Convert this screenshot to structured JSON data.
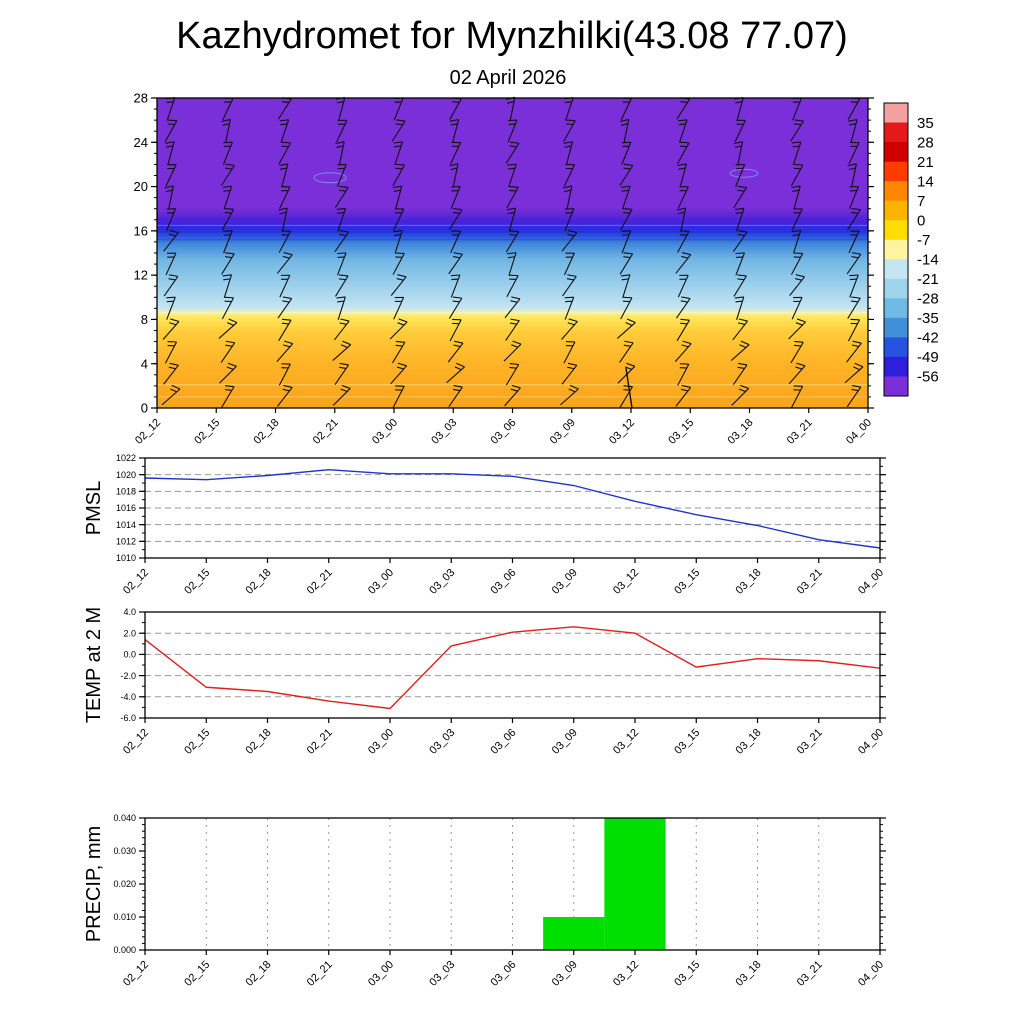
{
  "title": "Kazhydromet for Mynzhilki(43.08 77.07)",
  "subtitle": "02 April 2026",
  "time_labels": [
    "02_12",
    "02_15",
    "02_18",
    "02_21",
    "03_00",
    "03_03",
    "03_06",
    "03_09",
    "03_12",
    "03_15",
    "03_18",
    "03_21",
    "04_00"
  ],
  "chart_data": [
    {
      "type": "heatmap",
      "name": "temperature-wind-cross-section",
      "title": "02 April 2026",
      "x": [
        "02_12",
        "02_15",
        "02_18",
        "02_21",
        "03_00",
        "03_03",
        "03_06",
        "03_09",
        "03_12",
        "03_15",
        "03_18",
        "03_21",
        "04_00"
      ],
      "ylim": [
        0,
        28
      ],
      "yticks": [
        0,
        4,
        8,
        12,
        16,
        20,
        24,
        28
      ],
      "gradient_stops": [
        [
          0.0,
          "#7B2FD8"
        ],
        [
          0.355,
          "#7B2FD8"
        ],
        [
          0.395,
          "#4B22D8"
        ],
        [
          0.423,
          "#2B2BE2"
        ],
        [
          0.445,
          "#2A4FE2"
        ],
        [
          0.468,
          "#3F85DA"
        ],
        [
          0.52,
          "#70B5E4"
        ],
        [
          0.6,
          "#9ACFEC"
        ],
        [
          0.675,
          "#C2E4F2"
        ],
        [
          0.693,
          "#EEEFC0"
        ],
        [
          0.705,
          "#FFE85E"
        ],
        [
          0.755,
          "#FFCC3A"
        ],
        [
          0.86,
          "#FFB326"
        ],
        [
          1.0,
          "#F8A41E"
        ]
      ],
      "colorbar_tick_labels": [
        "35",
        "28",
        "21",
        "14",
        "7",
        "0",
        "-7",
        "-14",
        "-21",
        "-28",
        "-35",
        "-42",
        "-49",
        "-56"
      ],
      "colorbar_cell_colors": [
        "#F2A0A0",
        "#E31A1A",
        "#D00000",
        "#FF3C00",
        "#FF8700",
        "#FFB300",
        "#FFDD00",
        "#FFF2A0",
        "#C4E6F2",
        "#9ED4EC",
        "#6FB9E4",
        "#3F8FD9",
        "#2653E0",
        "#2F1FDC",
        "#7B2FD8"
      ]
    },
    {
      "type": "line",
      "ylabel": "PMSL",
      "x": [
        "02_12",
        "02_15",
        "02_18",
        "02_21",
        "03_00",
        "03_03",
        "03_06",
        "03_09",
        "03_12",
        "03_15",
        "03_18",
        "03_21",
        "04_00"
      ],
      "values": [
        1019.6,
        1019.4,
        1019.9,
        1020.6,
        1020.1,
        1020.1,
        1019.8,
        1018.7,
        1016.8,
        1015.2,
        1013.9,
        1012.2,
        1011.2
      ],
      "ylim": [
        1010,
        1022
      ],
      "yticks": [
        1010,
        1012,
        1014,
        1016,
        1018,
        1020,
        1022
      ],
      "ytick_labels": [
        "1010",
        "1012",
        "1014",
        "1016",
        "1018",
        "1020",
        "1022"
      ],
      "color": "#2233cc"
    },
    {
      "type": "line",
      "ylabel": "TEMP at 2 M",
      "x": [
        "02_12",
        "02_15",
        "02_18",
        "02_21",
        "03_00",
        "03_03",
        "03_06",
        "03_09",
        "03_12",
        "03_15",
        "03_18",
        "03_21",
        "04_00"
      ],
      "values": [
        1.4,
        -3.1,
        -3.5,
        -4.4,
        -5.1,
        0.8,
        2.1,
        2.6,
        2.0,
        -1.2,
        -0.4,
        -0.6,
        -1.3
      ],
      "ylim": [
        -6,
        4
      ],
      "yticks": [
        -6,
        -4,
        -2,
        0,
        2,
        4
      ],
      "ytick_labels": [
        "-6.0",
        "-4.0",
        "-2.0",
        "0.0",
        "2.0",
        "4.0"
      ],
      "color": "#e02020"
    },
    {
      "type": "bar",
      "ylabel": "PRECIP, mm",
      "x": [
        "02_12",
        "02_15",
        "02_18",
        "02_21",
        "03_00",
        "03_03",
        "03_06",
        "03_09",
        "03_12",
        "03_15",
        "03_18",
        "03_21",
        "04_00"
      ],
      "values": [
        0,
        0,
        0,
        0,
        0,
        0,
        0,
        0.01,
        0.04,
        0,
        0,
        0,
        0
      ],
      "ylim": [
        0,
        0.04
      ],
      "yticks": [
        0,
        0.01,
        0.02,
        0.03,
        0.04
      ],
      "ytick_labels": [
        "0.000",
        "0.010",
        "0.020",
        "0.030",
        "0.040"
      ],
      "color": "#00e000"
    }
  ]
}
